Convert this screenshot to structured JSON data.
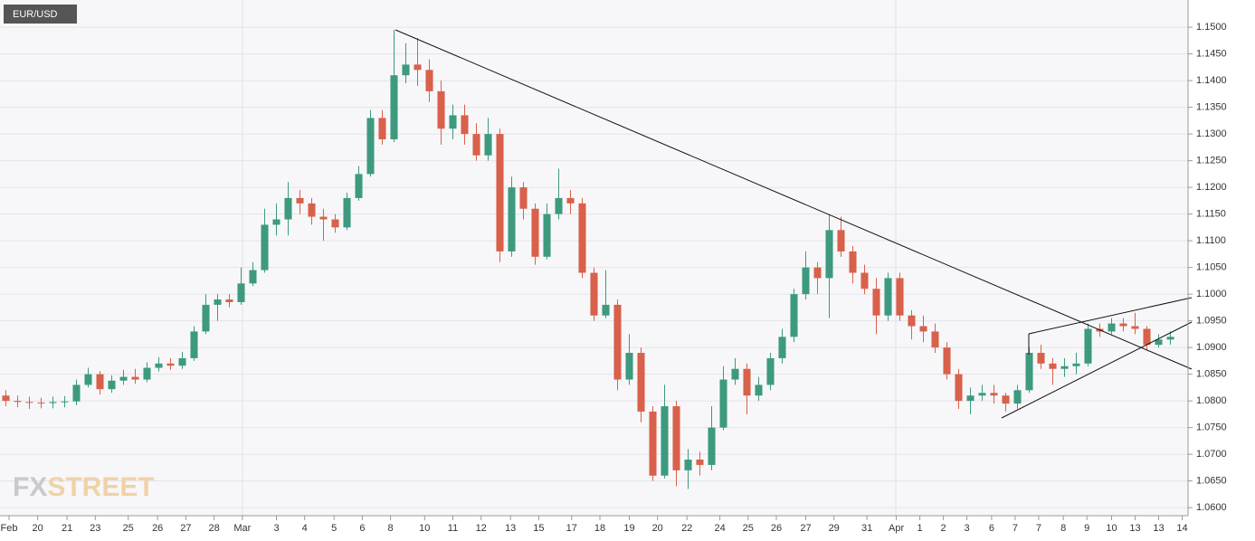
{
  "chart_data": {
    "type": "candlestick",
    "title": "EUR/USD",
    "watermark": [
      "FX",
      "STREET"
    ],
    "up_color": "#3d9a7e",
    "down_color": "#d9604a",
    "grid": true,
    "ylim": [
      1.0585,
      1.1551
    ],
    "yticks": [
      {
        "value": 1.06,
        "label": "1.0600"
      },
      {
        "value": 1.065,
        "label": "1.0650"
      },
      {
        "value": 1.07,
        "label": "1.0700"
      },
      {
        "value": 1.075,
        "label": "1.0750"
      },
      {
        "value": 1.08,
        "label": "1.0800"
      },
      {
        "value": 1.085,
        "label": "1.0850"
      },
      {
        "value": 1.09,
        "label": "1.0900"
      },
      {
        "value": 1.095,
        "label": "1.0950"
      },
      {
        "value": 1.1,
        "label": "1.1000"
      },
      {
        "value": 1.105,
        "label": "1.1050"
      },
      {
        "value": 1.11,
        "label": "1.1100"
      },
      {
        "value": 1.115,
        "label": "1.1150"
      },
      {
        "value": 1.12,
        "label": "1.1200"
      },
      {
        "value": 1.125,
        "label": "1.1250"
      },
      {
        "value": 1.13,
        "label": "1.1300"
      },
      {
        "value": 1.135,
        "label": "1.1350"
      },
      {
        "value": 1.14,
        "label": "1.1400"
      },
      {
        "value": 1.145,
        "label": "1.1450"
      },
      {
        "value": 1.15,
        "label": "1.1500"
      }
    ],
    "xlim": [
      -0.5,
      100.5
    ],
    "xticks": [
      {
        "value": 0.27,
        "label": "Feb"
      },
      {
        "value": 2.7,
        "label": "20"
      },
      {
        "value": 5.2,
        "label": "21"
      },
      {
        "value": 7.6,
        "label": "23"
      },
      {
        "value": 10.4,
        "label": "25"
      },
      {
        "value": 12.9,
        "label": "26"
      },
      {
        "value": 15.3,
        "label": "27"
      },
      {
        "value": 17.7,
        "label": "28"
      },
      {
        "value": 20.1,
        "label": "Mar"
      },
      {
        "value": 23,
        "label": "3"
      },
      {
        "value": 25.4,
        "label": "4"
      },
      {
        "value": 27.9,
        "label": "5"
      },
      {
        "value": 30.3,
        "label": "6"
      },
      {
        "value": 32.7,
        "label": "8"
      },
      {
        "value": 35.6,
        "label": "10"
      },
      {
        "value": 38,
        "label": "11"
      },
      {
        "value": 40.4,
        "label": "12"
      },
      {
        "value": 42.9,
        "label": "13"
      },
      {
        "value": 45.3,
        "label": "15"
      },
      {
        "value": 48.1,
        "label": "17"
      },
      {
        "value": 50.5,
        "label": "18"
      },
      {
        "value": 53,
        "label": "19"
      },
      {
        "value": 55.4,
        "label": "20"
      },
      {
        "value": 57.9,
        "label": "22"
      },
      {
        "value": 60.7,
        "label": "24"
      },
      {
        "value": 63.1,
        "label": "25"
      },
      {
        "value": 65.5,
        "label": "26"
      },
      {
        "value": 68,
        "label": "27"
      },
      {
        "value": 70.4,
        "label": "29"
      },
      {
        "value": 73.2,
        "label": "31"
      },
      {
        "value": 75.7,
        "label": "Apr"
      },
      {
        "value": 77.7,
        "label": "1"
      },
      {
        "value": 79.7,
        "label": "2"
      },
      {
        "value": 81.7,
        "label": "3"
      },
      {
        "value": 83.8,
        "label": "6"
      },
      {
        "value": 85.8,
        "label": "7"
      },
      {
        "value": 87.8,
        "label": "7"
      },
      {
        "value": 89.9,
        "label": "8"
      },
      {
        "value": 91.9,
        "label": "9"
      },
      {
        "value": 94,
        "label": "10"
      },
      {
        "value": 96,
        "label": "13"
      },
      {
        "value": 98,
        "label": "13"
      },
      {
        "value": 100,
        "label": "14"
      }
    ],
    "candles": [
      [
        1.081,
        1.082,
        1.079,
        1.08
      ],
      [
        1.08,
        1.081,
        1.0788,
        1.0798
      ],
      [
        1.0798,
        1.0808,
        1.0785,
        1.0797
      ],
      [
        1.0797,
        1.0806,
        1.0786,
        1.0796
      ],
      [
        1.0796,
        1.0808,
        1.0786,
        1.0798
      ],
      [
        1.0798,
        1.0809,
        1.0788,
        1.0799
      ],
      [
        1.0799,
        1.084,
        1.0792,
        1.083
      ],
      [
        1.083,
        1.0862,
        1.0825,
        1.085
      ],
      [
        1.085,
        1.0856,
        1.0812,
        1.0822
      ],
      [
        1.0822,
        1.0848,
        1.0815,
        1.0838
      ],
      [
        1.0838,
        1.0858,
        1.083,
        1.0845
      ],
      [
        1.0845,
        1.086,
        1.0832,
        1.084
      ],
      [
        1.084,
        1.0872,
        1.0835,
        1.0862
      ],
      [
        1.0862,
        1.0882,
        1.0855,
        1.087
      ],
      [
        1.087,
        1.088,
        1.0858,
        1.0866
      ],
      [
        1.0866,
        1.0892,
        1.086,
        1.088
      ],
      [
        1.088,
        1.094,
        1.0875,
        1.093
      ],
      [
        1.093,
        1.1,
        1.0925,
        1.098
      ],
      [
        1.098,
        1.1,
        1.095,
        1.099
      ],
      [
        1.099,
        1.1,
        1.0975,
        1.0985
      ],
      [
        1.0985,
        1.105,
        1.098,
        1.102
      ],
      [
        1.102,
        1.106,
        1.1015,
        1.1045
      ],
      [
        1.1045,
        1.116,
        1.104,
        1.113
      ],
      [
        1.113,
        1.117,
        1.111,
        1.114
      ],
      [
        1.114,
        1.121,
        1.111,
        1.118
      ],
      [
        1.118,
        1.1195,
        1.115,
        1.117
      ],
      [
        1.117,
        1.118,
        1.113,
        1.1145
      ],
      [
        1.1145,
        1.116,
        1.11,
        1.114
      ],
      [
        1.114,
        1.115,
        1.1115,
        1.1125
      ],
      [
        1.1125,
        1.119,
        1.112,
        1.118
      ],
      [
        1.118,
        1.124,
        1.1175,
        1.1225
      ],
      [
        1.1225,
        1.1345,
        1.122,
        1.133
      ],
      [
        1.133,
        1.1345,
        1.128,
        1.129
      ],
      [
        1.129,
        1.1495,
        1.1285,
        1.141
      ],
      [
        1.141,
        1.147,
        1.1395,
        1.143
      ],
      [
        1.143,
        1.148,
        1.139,
        1.142
      ],
      [
        1.142,
        1.144,
        1.136,
        1.138
      ],
      [
        1.138,
        1.14,
        1.128,
        1.131
      ],
      [
        1.131,
        1.1355,
        1.129,
        1.1335
      ],
      [
        1.1335,
        1.1355,
        1.128,
        1.13
      ],
      [
        1.13,
        1.132,
        1.125,
        1.126
      ],
      [
        1.126,
        1.133,
        1.125,
        1.13
      ],
      [
        1.13,
        1.131,
        1.106,
        1.108
      ],
      [
        1.108,
        1.122,
        1.107,
        1.12
      ],
      [
        1.12,
        1.121,
        1.114,
        1.116
      ],
      [
        1.116,
        1.117,
        1.1055,
        1.107
      ],
      [
        1.107,
        1.117,
        1.1065,
        1.115
      ],
      [
        1.115,
        1.1235,
        1.114,
        1.118
      ],
      [
        1.118,
        1.1195,
        1.115,
        1.117
      ],
      [
        1.117,
        1.118,
        1.103,
        1.104
      ],
      [
        1.104,
        1.105,
        1.095,
        1.096
      ],
      [
        1.096,
        1.1045,
        1.0955,
        1.098
      ],
      [
        1.098,
        1.099,
        1.082,
        1.084
      ],
      [
        1.084,
        1.0925,
        1.083,
        1.089
      ],
      [
        1.089,
        1.09,
        1.076,
        1.078
      ],
      [
        1.078,
        1.079,
        1.065,
        1.066
      ],
      [
        1.066,
        1.083,
        1.0655,
        1.079
      ],
      [
        1.079,
        1.08,
        1.064,
        1.067
      ],
      [
        1.067,
        1.071,
        1.0635,
        1.069
      ],
      [
        1.069,
        1.0705,
        1.066,
        1.068
      ],
      [
        1.068,
        1.079,
        1.067,
        1.075
      ],
      [
        1.075,
        1.0865,
        1.0745,
        1.084
      ],
      [
        1.084,
        1.088,
        1.083,
        1.086
      ],
      [
        1.086,
        1.087,
        1.0775,
        1.081
      ],
      [
        1.081,
        1.0845,
        1.08,
        1.083
      ],
      [
        1.083,
        1.089,
        1.082,
        1.088
      ],
      [
        1.088,
        1.0935,
        1.087,
        1.092
      ],
      [
        1.092,
        1.101,
        1.091,
        1.1
      ],
      [
        1.1,
        1.108,
        1.099,
        1.105
      ],
      [
        1.105,
        1.106,
        1.1,
        1.103
      ],
      [
        1.103,
        1.115,
        1.0955,
        1.112
      ],
      [
        1.112,
        1.1145,
        1.107,
        1.108
      ],
      [
        1.108,
        1.109,
        1.102,
        1.104
      ],
      [
        1.104,
        1.1055,
        1.1,
        1.101
      ],
      [
        1.101,
        1.103,
        1.0925,
        1.096
      ],
      [
        1.096,
        1.104,
        1.095,
        1.103
      ],
      [
        1.103,
        1.104,
        1.095,
        1.096
      ],
      [
        1.096,
        1.097,
        1.0915,
        1.094
      ],
      [
        1.094,
        1.096,
        1.091,
        1.093
      ],
      [
        1.093,
        1.0945,
        1.089,
        1.09
      ],
      [
        1.09,
        1.091,
        1.084,
        1.085
      ],
      [
        1.085,
        1.086,
        1.0785,
        1.08
      ],
      [
        1.08,
        1.0825,
        1.0775,
        1.081
      ],
      [
        1.081,
        1.083,
        1.08,
        1.0815
      ],
      [
        1.0815,
        1.083,
        1.0795,
        1.081
      ],
      [
        1.081,
        1.0815,
        1.078,
        1.0795
      ],
      [
        1.0795,
        1.083,
        1.0785,
        1.082
      ],
      [
        1.082,
        1.09,
        1.0815,
        1.089
      ],
      [
        1.089,
        1.0905,
        1.086,
        1.087
      ],
      [
        1.087,
        1.088,
        1.083,
        1.086
      ],
      [
        1.086,
        1.088,
        1.0845,
        1.0865
      ],
      [
        1.0865,
        1.089,
        1.085,
        1.087
      ],
      [
        1.087,
        1.0945,
        1.0865,
        1.0935
      ],
      [
        1.0935,
        1.0945,
        1.092,
        1.093
      ],
      [
        1.093,
        1.0955,
        1.0925,
        1.0945
      ],
      [
        1.0945,
        1.0955,
        1.093,
        1.094
      ],
      [
        1.094,
        1.0965,
        1.0925,
        1.0935
      ],
      [
        1.0935,
        1.094,
        1.0895,
        1.0905
      ],
      [
        1.0905,
        1.0925,
        1.09,
        1.0915
      ],
      [
        1.0915,
        1.093,
        1.0905,
        1.092
      ]
    ]
  }
}
